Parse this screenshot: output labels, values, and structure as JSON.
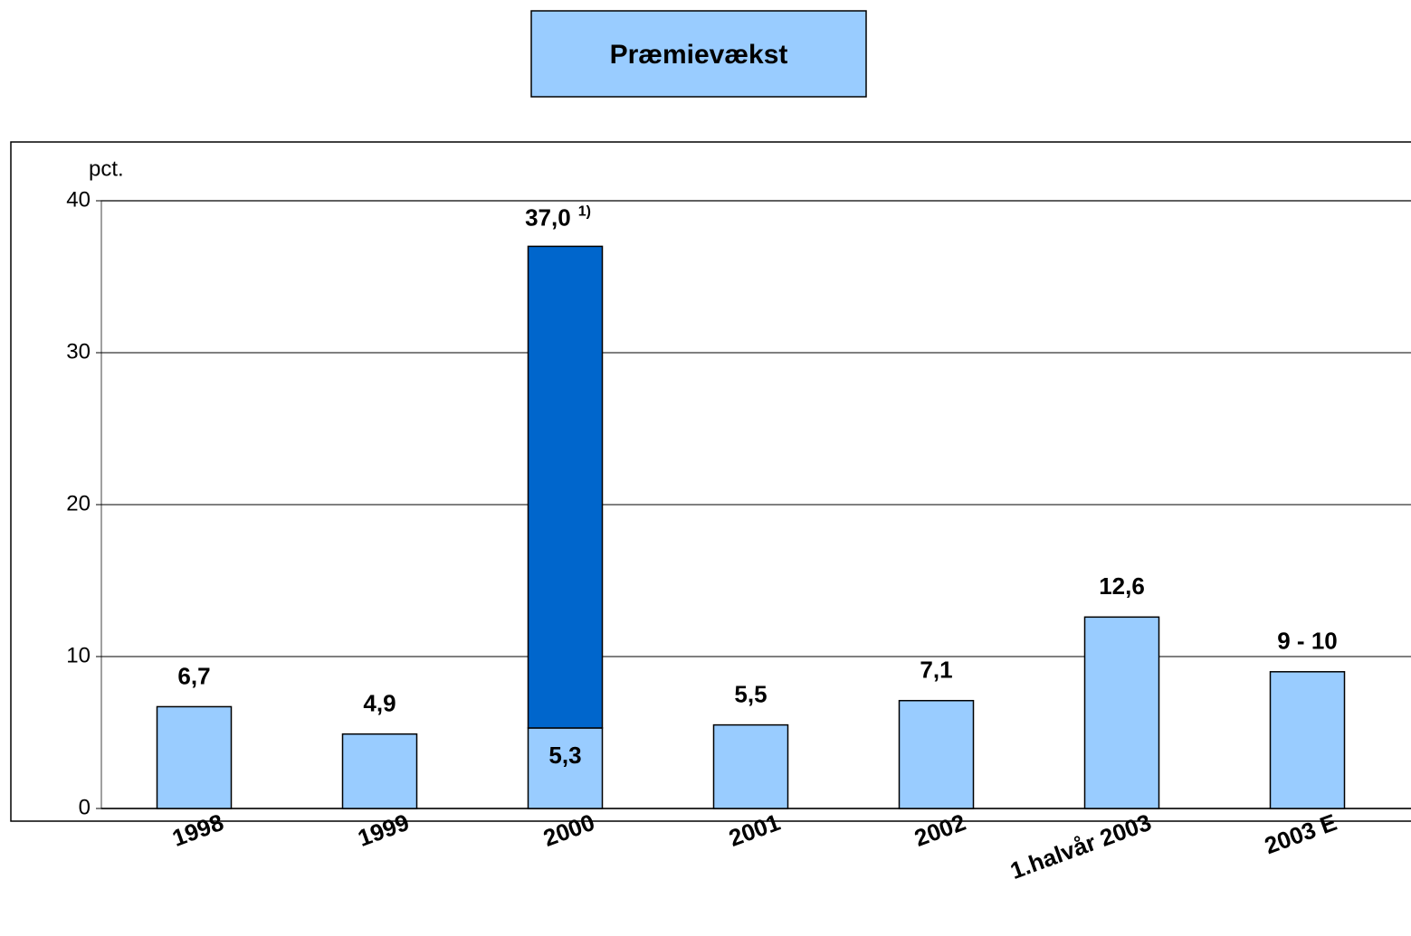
{
  "chart_data": {
    "type": "bar",
    "stacked": true,
    "title": "Præmievækst",
    "y_label": "pct.",
    "categories": [
      "1998",
      "1999",
      "2000",
      "2001",
      "2002",
      "1.halvår 2003",
      "2003 E"
    ],
    "series": [
      {
        "color": "#99ccff",
        "values": [
          6.7,
          4.9,
          5.3,
          5.5,
          7.1,
          12.6,
          9
        ],
        "value_labels": [
          "6,7",
          "4,9",
          "5,3",
          "5,5",
          "7,1",
          "12,6",
          "9 - 10"
        ]
      },
      {
        "color": "#0066cc",
        "values": [
          null,
          null,
          31.7,
          null,
          null,
          null,
          null
        ]
      }
    ],
    "annotations": [
      {
        "category": "2000",
        "text": "37,0",
        "note": "1)"
      }
    ],
    "ylim": [
      0,
      40
    ],
    "yticks": [
      0,
      10,
      20,
      30,
      40
    ],
    "grid": true
  }
}
